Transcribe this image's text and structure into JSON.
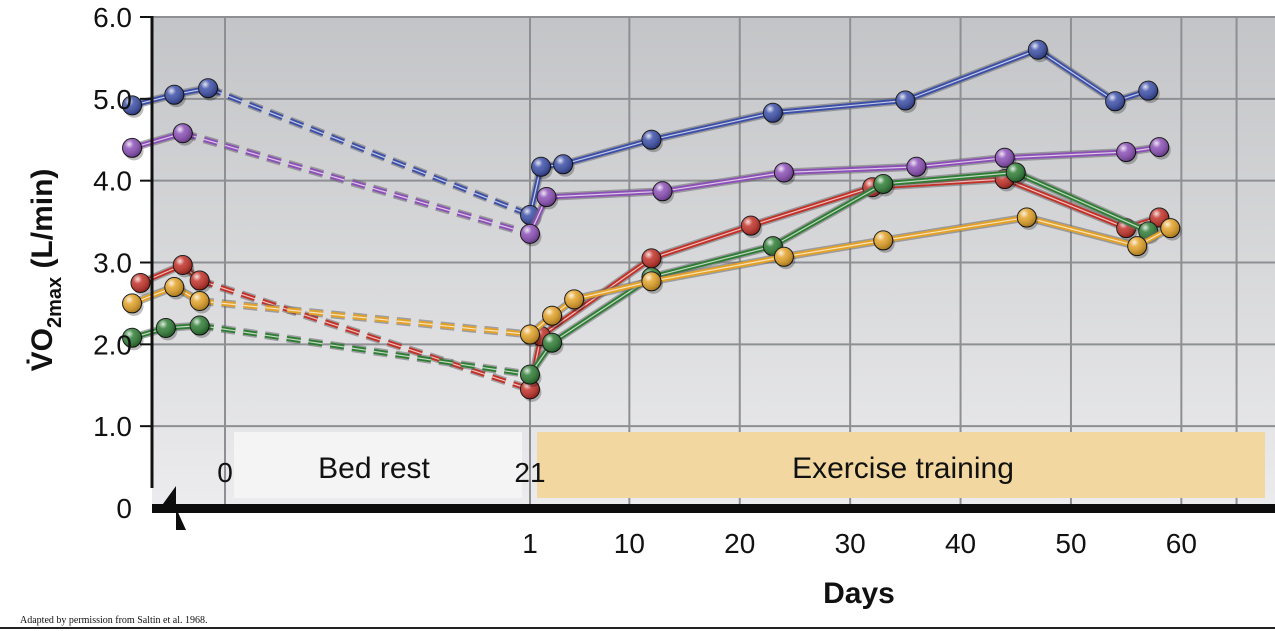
{
  "chart_data": {
    "type": "line",
    "xlabel": "Days",
    "ylabel": "V̇O",
    "ylabel_sub": "2max",
    "ylabel_unit": " (L/min)",
    "ylim": [
      0,
      6.0
    ],
    "yticks": [
      {
        "value": 0,
        "label": "0"
      },
      {
        "value": 1.0,
        "label": "1.0"
      },
      {
        "value": 2.0,
        "label": "2.0"
      },
      {
        "value": 3.0,
        "label": "3.0"
      },
      {
        "value": 4.0,
        "label": "4.0"
      },
      {
        "value": 5.0,
        "label": "5.0"
      },
      {
        "value": 6.0,
        "label": "6.0"
      }
    ],
    "xticks_bedrest": [
      {
        "value": 0,
        "label": "0"
      },
      {
        "value": 21,
        "label": "21"
      }
    ],
    "xticks_training": [
      {
        "value": 1,
        "label": "1"
      },
      {
        "value": 10,
        "label": "10"
      },
      {
        "value": 20,
        "label": "20"
      },
      {
        "value": 30,
        "label": "30"
      },
      {
        "value": 40,
        "label": "40"
      },
      {
        "value": 50,
        "label": "50"
      },
      {
        "value": 60,
        "label": "60"
      }
    ],
    "phases": [
      {
        "label": "Bed rest",
        "phase": "bedrest"
      },
      {
        "label": "Exercise training",
        "phase": "training"
      }
    ],
    "grid": true,
    "series": [
      {
        "color": "#3c4fa8",
        "pre": [
          [
            -5.5,
            4.92
          ],
          [
            -3,
            5.05
          ],
          [
            -1,
            5.13
          ]
        ],
        "bedrest_end": 3.58,
        "training": [
          [
            1,
            3.58
          ],
          [
            2,
            4.17
          ],
          [
            4,
            4.2
          ],
          [
            12,
            4.5
          ],
          [
            23,
            4.83
          ],
          [
            35,
            4.98
          ],
          [
            47,
            5.6
          ],
          [
            54,
            4.97
          ],
          [
            57,
            5.1
          ]
        ]
      },
      {
        "color": "#8b4fb6",
        "pre": [
          [
            -5.5,
            4.4
          ],
          [
            -2.5,
            4.58
          ]
        ],
        "bedrest_end": 3.35,
        "training": [
          [
            1,
            3.35
          ],
          [
            2.5,
            3.8
          ],
          [
            13,
            3.87
          ],
          [
            24,
            4.1
          ],
          [
            36,
            4.17
          ],
          [
            44,
            4.28
          ],
          [
            55,
            4.35
          ],
          [
            58,
            4.41
          ]
        ]
      },
      {
        "color": "#c23128",
        "pre": [
          [
            -5,
            2.75
          ],
          [
            -2.5,
            2.97
          ],
          [
            -1.5,
            2.78
          ]
        ],
        "bedrest_end": 1.45,
        "training": [
          [
            1,
            1.45
          ],
          [
            2,
            2.1
          ],
          [
            12,
            3.05
          ],
          [
            21,
            3.45
          ],
          [
            32,
            3.92
          ],
          [
            44,
            4.02
          ],
          [
            55,
            3.42
          ],
          [
            58,
            3.55
          ]
        ]
      },
      {
        "color": "#2f7d35",
        "pre": [
          [
            -5.5,
            2.08
          ],
          [
            -3.5,
            2.2
          ],
          [
            -1.5,
            2.23
          ]
        ],
        "bedrest_end": 1.63,
        "training": [
          [
            1,
            1.63
          ],
          [
            3,
            2.02
          ],
          [
            12,
            2.82
          ],
          [
            23,
            3.2
          ],
          [
            33,
            3.96
          ],
          [
            45,
            4.1
          ],
          [
            57,
            3.38
          ]
        ]
      },
      {
        "color": "#e3a227",
        "pre": [
          [
            -5.5,
            2.5
          ],
          [
            -3,
            2.7
          ],
          [
            -1.5,
            2.53
          ]
        ],
        "bedrest_end": 2.12,
        "training": [
          [
            1,
            2.12
          ],
          [
            3,
            2.35
          ],
          [
            5,
            2.55
          ],
          [
            12,
            2.77
          ],
          [
            24,
            3.07
          ],
          [
            33,
            3.27
          ],
          [
            46,
            3.55
          ],
          [
            56,
            3.2
          ],
          [
            59,
            3.42
          ]
        ]
      }
    ]
  },
  "credit": "Adapted by permission from Saltin et al. 1968."
}
